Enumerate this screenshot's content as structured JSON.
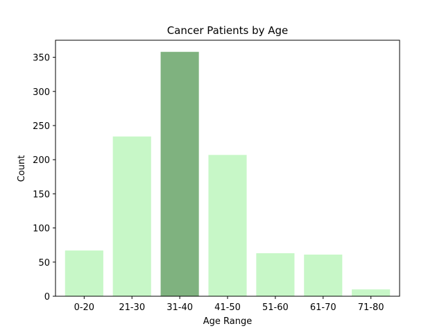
{
  "chart_data": {
    "type": "bar",
    "title": "Cancer Patients by Age",
    "xlabel": "Age Range",
    "ylabel": "Count",
    "categories": [
      "0-20",
      "21-30",
      "31-40",
      "41-50",
      "51-60",
      "61-70",
      "71-80"
    ],
    "values": [
      67,
      234,
      358,
      207,
      63,
      61,
      10
    ],
    "ylim": [
      0,
      375
    ],
    "yticks": [
      0,
      50,
      100,
      150,
      200,
      250,
      300,
      350
    ],
    "grid": false,
    "legend": "none",
    "colors": {
      "bar": "#c7f7c7",
      "highlight": "#7fb27f",
      "axis": "#000000"
    },
    "highlight_category": "31-40"
  }
}
